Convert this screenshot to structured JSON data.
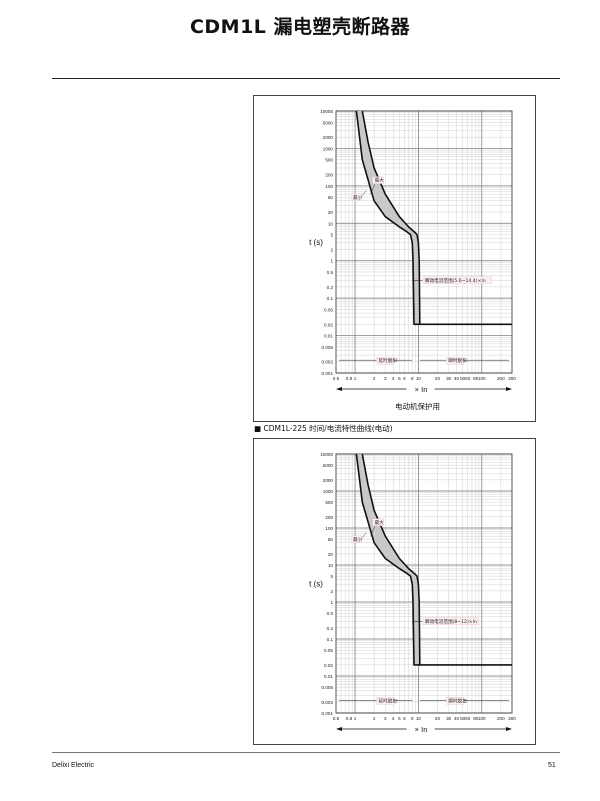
{
  "header": {
    "title": "CDM1L 漏电塑壳断路器"
  },
  "charts": [
    {
      "ylabel": "t (s)",
      "xlabel": "× In",
      "y_ticks": [
        "10000",
        "5000",
        "2000",
        "1000",
        "500",
        "200",
        "100",
        "50",
        "20",
        "10",
        "5",
        "2",
        "1",
        "0.5",
        "0.2",
        "0.1",
        "0.05",
        "0.02",
        "0.01",
        "0.005",
        "0.002",
        "0.001"
      ],
      "x_ticks": [
        "0.5",
        "0.8",
        "1",
        "2",
        "3",
        "4",
        "5",
        "6",
        "8",
        "10",
        "20",
        "30",
        "40",
        "50",
        "60",
        "80",
        "100",
        "200",
        "300"
      ],
      "labels": {
        "max": "最大",
        "min": "最小",
        "instant_range": "瞬动电流范围(5.6~14.4)×In",
        "delay_zone": "延时脱扣",
        "instant_zone": "瞬时脱扣"
      },
      "caption": "电动机保护用"
    },
    {
      "section_caption": "■ CDM1L-225 时间/电流特性曲线(电动)",
      "ylabel": "t (s)",
      "xlabel": "× In",
      "y_ticks": [
        "10000",
        "5000",
        "2000",
        "1000",
        "500",
        "200",
        "100",
        "50",
        "20",
        "10",
        "5",
        "2",
        "1",
        "0.5",
        "0.2",
        "0.1",
        "0.05",
        "0.02",
        "0.01",
        "0.005",
        "0.002",
        "0.001"
      ],
      "x_ticks": [
        "0.5",
        "0.8",
        "1",
        "2",
        "3",
        "4",
        "5",
        "6",
        "8",
        "10",
        "20",
        "30",
        "40",
        "50",
        "60",
        "80",
        "100",
        "200",
        "300"
      ],
      "labels": {
        "max": "最大",
        "min": "最小",
        "instant_range": "瞬动电流范围(8~12)×In",
        "delay_zone": "延时脱扣",
        "instant_zone": "瞬时脱扣"
      }
    }
  ],
  "chart_data": [
    {
      "type": "line",
      "xscale": "log",
      "yscale": "log",
      "xlim": [
        0.5,
        300
      ],
      "ylim": [
        0.001,
        10000
      ],
      "series": [
        {
          "name": "最大",
          "x": [
            1.3,
            1.6,
            2.0,
            3.0,
            5.0,
            7.0,
            8.5,
            9.5,
            10.0,
            10.3,
            10.5,
            14.4,
            300
          ],
          "y": [
            10000,
            1500,
            300,
            60,
            15,
            8,
            6,
            5,
            3,
            1,
            0.02,
            0.02,
            0.02
          ]
        },
        {
          "name": "最小",
          "x": [
            1.05,
            1.3,
            2.0,
            3.0,
            5.0,
            6.5,
            7.5,
            8.0,
            8.2,
            8.3,
            8.5,
            10.5
          ],
          "y": [
            10000,
            500,
            40,
            15,
            8,
            6,
            5,
            3,
            1,
            0.3,
            0.02,
            0.02
          ]
        }
      ]
    },
    {
      "type": "line",
      "xscale": "log",
      "yscale": "log",
      "xlim": [
        0.5,
        300
      ],
      "ylim": [
        0.001,
        10000
      ],
      "series": [
        {
          "name": "最大",
          "x": [
            1.3,
            1.6,
            2.0,
            3.0,
            5.0,
            7.0,
            8.5,
            9.5,
            10.0,
            10.3,
            10.5,
            12.0,
            300
          ],
          "y": [
            10000,
            1500,
            300,
            60,
            15,
            8,
            6,
            5,
            3,
            1,
            0.02,
            0.02,
            0.02
          ]
        },
        {
          "name": "最小",
          "x": [
            1.05,
            1.3,
            2.0,
            3.0,
            5.0,
            6.5,
            7.5,
            8.0,
            8.2,
            8.3,
            8.5,
            10.5
          ],
          "y": [
            10000,
            500,
            40,
            15,
            8,
            6,
            5,
            3,
            1,
            0.3,
            0.02,
            0.02
          ]
        }
      ]
    }
  ],
  "footer": {
    "brand": "Delixi Electric",
    "page": "51"
  }
}
